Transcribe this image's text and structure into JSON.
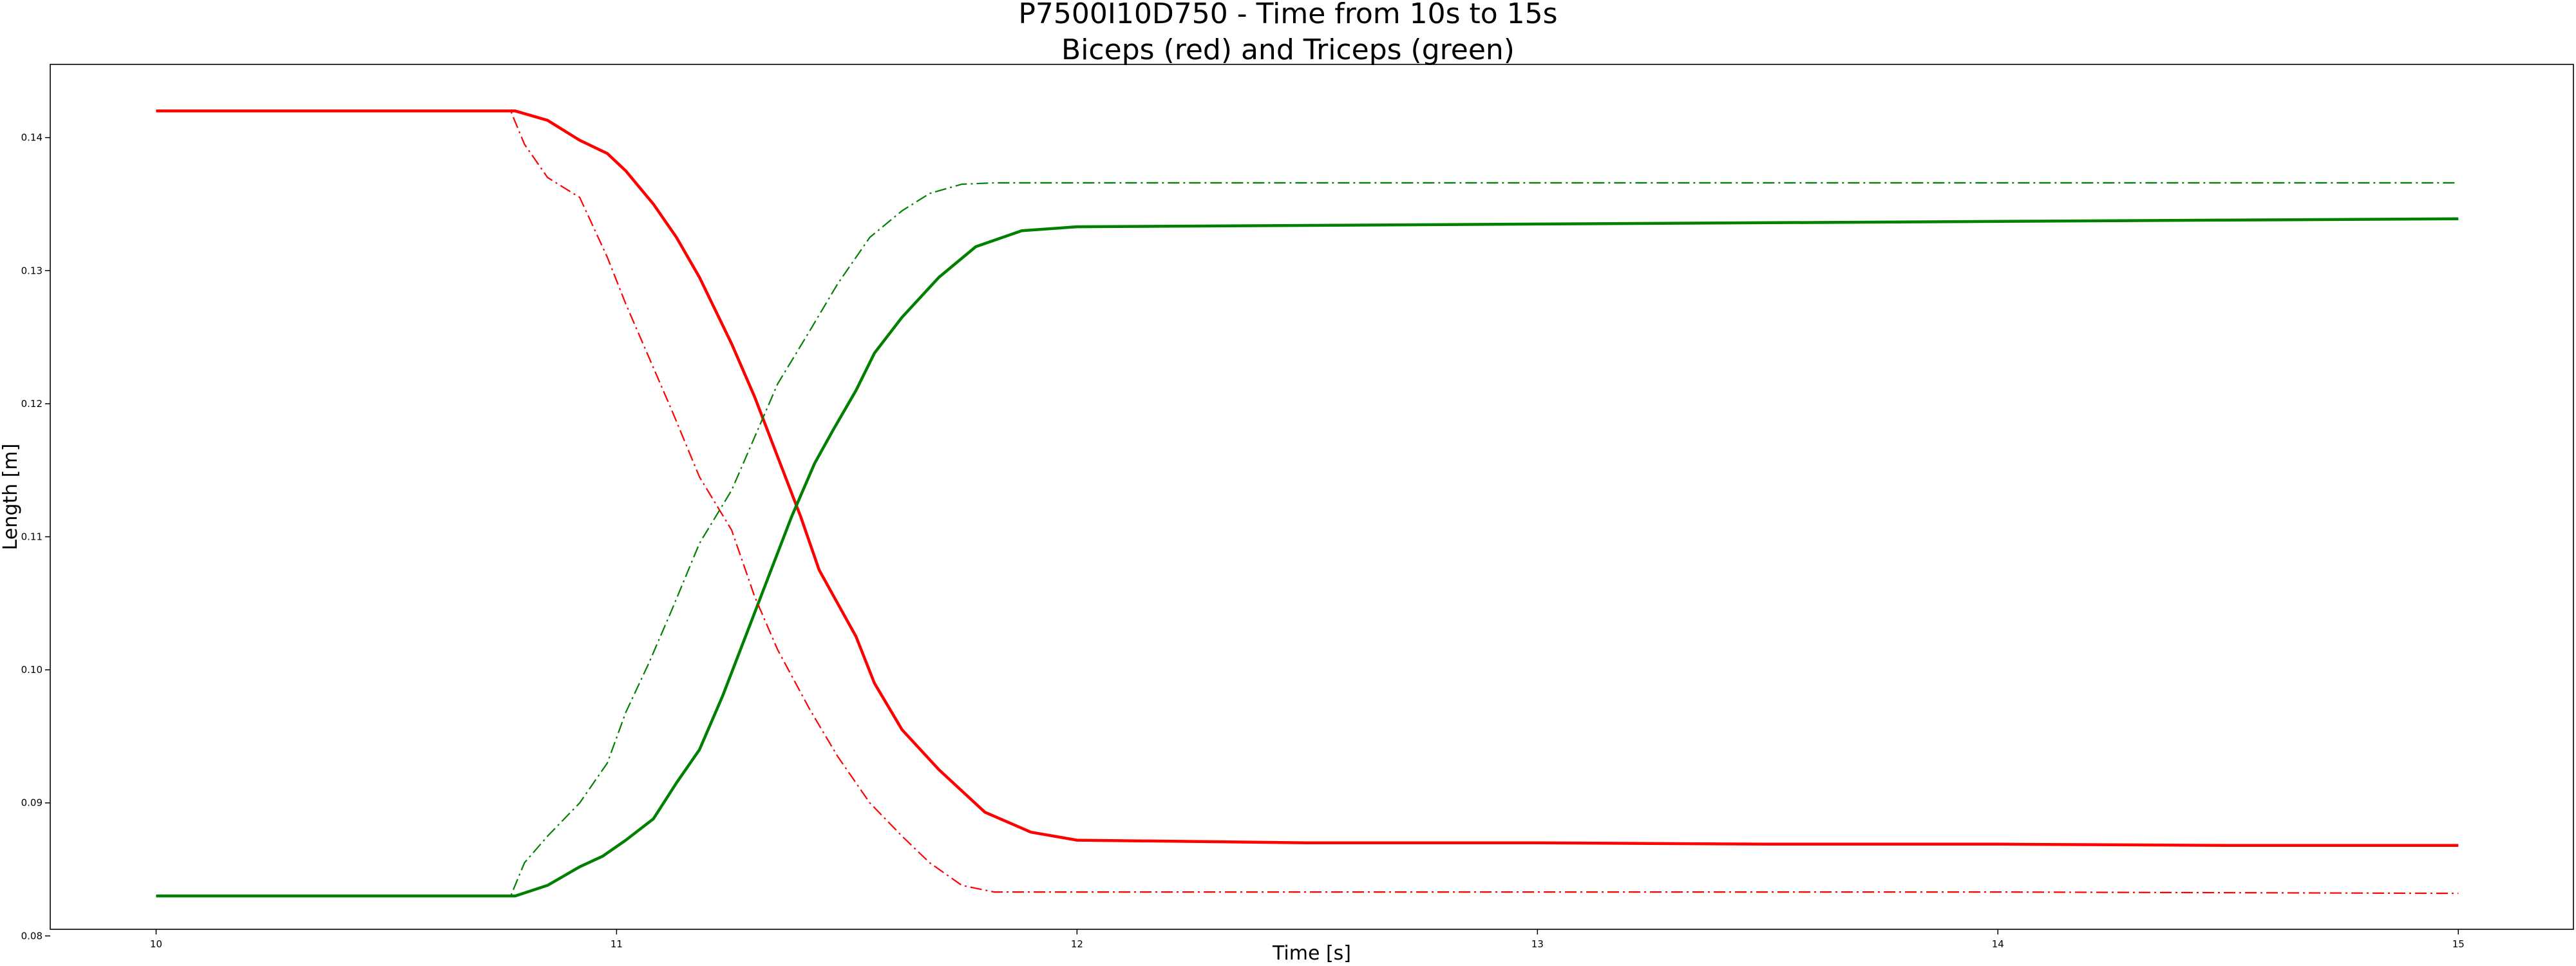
{
  "chart_data": {
    "type": "line",
    "title": "P7500I10D750 - Time from 10s to 15s",
    "subtitle": "Biceps (red) and Triceps (green)",
    "xlabel": "Time [s]",
    "ylabel": "Length [m]",
    "xlim": [
      9.77,
      15.25
    ],
    "ylim": [
      0.0805,
      0.1455
    ],
    "x_ticks": [
      10,
      11,
      12,
      13,
      14,
      15
    ],
    "x_tick_labels": [
      "10",
      "11",
      "12",
      "13",
      "14",
      "15"
    ],
    "y_ticks": [
      0.08,
      0.09,
      0.1,
      0.11,
      0.12,
      0.13,
      0.14
    ],
    "y_tick_labels": [
      "0.08",
      "0.09",
      "0.10",
      "0.11",
      "0.12",
      "0.13",
      "0.14"
    ],
    "grid": false,
    "legend": "none",
    "series": [
      {
        "style": "solid",
        "color": "#ff0000",
        "points": [
          [
            10.0,
            0.142
          ],
          [
            10.5,
            0.142
          ],
          [
            10.78,
            0.142
          ],
          [
            10.85,
            0.1413
          ],
          [
            10.92,
            0.1398
          ],
          [
            10.98,
            0.1388
          ],
          [
            11.02,
            0.1375
          ],
          [
            11.08,
            0.135
          ],
          [
            11.13,
            0.1325
          ],
          [
            11.18,
            0.1295
          ],
          [
            11.25,
            0.1245
          ],
          [
            11.3,
            0.1205
          ],
          [
            11.35,
            0.116
          ],
          [
            11.4,
            0.1115
          ],
          [
            11.44,
            0.1075
          ],
          [
            11.48,
            0.105
          ],
          [
            11.52,
            0.1025
          ],
          [
            11.56,
            0.099
          ],
          [
            11.62,
            0.0955
          ],
          [
            11.7,
            0.0925
          ],
          [
            11.8,
            0.0893
          ],
          [
            11.9,
            0.0878
          ],
          [
            12.0,
            0.0872
          ],
          [
            12.5,
            0.087
          ],
          [
            13.0,
            0.087
          ],
          [
            13.5,
            0.0869
          ],
          [
            14.0,
            0.0869
          ],
          [
            14.5,
            0.0868
          ],
          [
            15.0,
            0.0868
          ]
        ]
      },
      {
        "style": "solid",
        "color": "#008000",
        "points": [
          [
            10.0,
            0.083
          ],
          [
            10.5,
            0.083
          ],
          [
            10.78,
            0.083
          ],
          [
            10.85,
            0.0838
          ],
          [
            10.92,
            0.0852
          ],
          [
            10.97,
            0.086
          ],
          [
            11.02,
            0.0872
          ],
          [
            11.08,
            0.0888
          ],
          [
            11.13,
            0.0915
          ],
          [
            11.18,
            0.094
          ],
          [
            11.23,
            0.098
          ],
          [
            11.28,
            0.1025
          ],
          [
            11.33,
            0.107
          ],
          [
            11.38,
            0.1115
          ],
          [
            11.43,
            0.1155
          ],
          [
            11.47,
            0.118
          ],
          [
            11.52,
            0.121
          ],
          [
            11.56,
            0.1238
          ],
          [
            11.62,
            0.1265
          ],
          [
            11.7,
            0.1295
          ],
          [
            11.78,
            0.1318
          ],
          [
            11.88,
            0.133
          ],
          [
            12.0,
            0.1333
          ],
          [
            13.0,
            0.1335
          ],
          [
            14.0,
            0.1337
          ],
          [
            15.0,
            0.1339
          ]
        ]
      },
      {
        "style": "dashdot",
        "color": "#ff0000",
        "points": [
          [
            10.0,
            0.142
          ],
          [
            10.5,
            0.142
          ],
          [
            10.77,
            0.142
          ],
          [
            10.8,
            0.1395
          ],
          [
            10.85,
            0.137
          ],
          [
            10.92,
            0.1355
          ],
          [
            10.98,
            0.131
          ],
          [
            11.02,
            0.1275
          ],
          [
            11.07,
            0.1235
          ],
          [
            11.12,
            0.1195
          ],
          [
            11.18,
            0.1145
          ],
          [
            11.25,
            0.1105
          ],
          [
            11.3,
            0.1055
          ],
          [
            11.35,
            0.1015
          ],
          [
            11.42,
            0.097
          ],
          [
            11.48,
            0.0935
          ],
          [
            11.55,
            0.09
          ],
          [
            11.62,
            0.0875
          ],
          [
            11.68,
            0.0855
          ],
          [
            11.75,
            0.0838
          ],
          [
            11.82,
            0.0833
          ],
          [
            12.0,
            0.0833
          ],
          [
            13.0,
            0.0833
          ],
          [
            14.0,
            0.0833
          ],
          [
            15.0,
            0.0832
          ]
        ]
      },
      {
        "style": "dashdot",
        "color": "#008000",
        "points": [
          [
            10.0,
            0.083
          ],
          [
            10.5,
            0.083
          ],
          [
            10.77,
            0.083
          ],
          [
            10.8,
            0.0855
          ],
          [
            10.85,
            0.0875
          ],
          [
            10.92,
            0.09
          ],
          [
            10.98,
            0.093
          ],
          [
            11.02,
            0.0968
          ],
          [
            11.07,
            0.1005
          ],
          [
            11.12,
            0.1045
          ],
          [
            11.18,
            0.1095
          ],
          [
            11.25,
            0.1135
          ],
          [
            11.3,
            0.1175
          ],
          [
            11.35,
            0.1215
          ],
          [
            11.42,
            0.1255
          ],
          [
            11.48,
            0.129
          ],
          [
            11.55,
            0.1325
          ],
          [
            11.62,
            0.1345
          ],
          [
            11.68,
            0.1358
          ],
          [
            11.75,
            0.1365
          ],
          [
            11.82,
            0.1366
          ],
          [
            12.0,
            0.1366
          ],
          [
            13.0,
            0.1366
          ],
          [
            14.0,
            0.1366
          ],
          [
            15.0,
            0.1366
          ]
        ]
      }
    ]
  }
}
